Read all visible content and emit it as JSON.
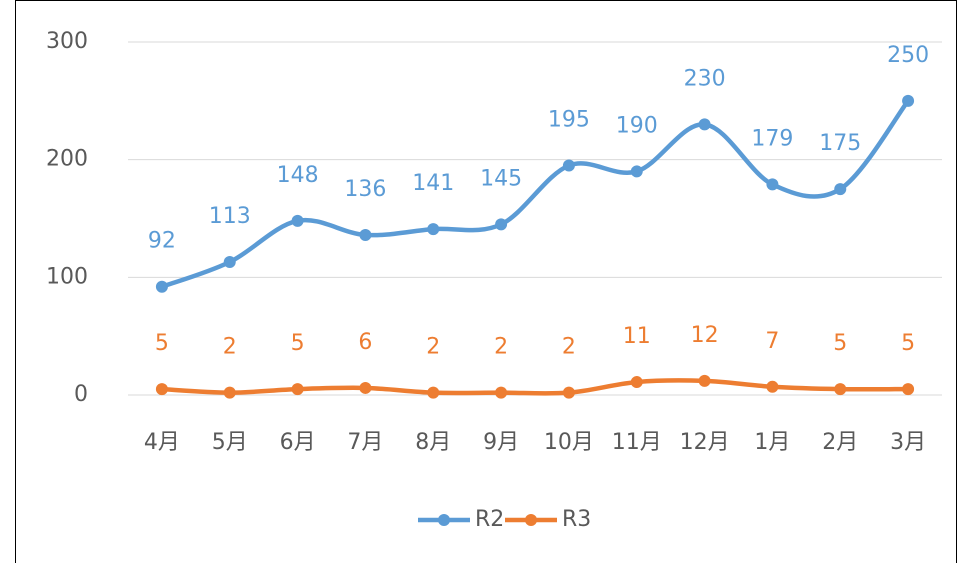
{
  "chart_data": {
    "type": "line",
    "categories": [
      "4月",
      "5月",
      "6月",
      "7月",
      "8月",
      "9月",
      "10月",
      "11月",
      "12月",
      "1月",
      "2月",
      "3月"
    ],
    "series": [
      {
        "name": "R2",
        "color": "#5b9bd5",
        "values": [
          92,
          113,
          148,
          136,
          141,
          145,
          195,
          190,
          230,
          179,
          175,
          250
        ]
      },
      {
        "name": "R3",
        "color": "#ed7d31",
        "values": [
          5,
          2,
          5,
          6,
          2,
          2,
          2,
          11,
          12,
          7,
          5,
          5
        ]
      }
    ],
    "ylim": [
      0,
      300
    ],
    "yticks": [
      0,
      100,
      200,
      300
    ],
    "grid": true,
    "smooth": true,
    "legend": "bottom"
  }
}
